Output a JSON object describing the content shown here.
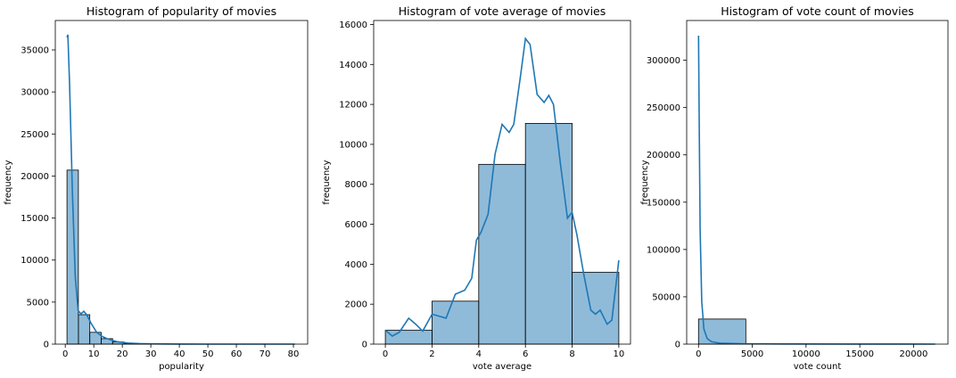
{
  "chart_data": [
    {
      "type": "bar",
      "title": "Histogram of popularity of movies",
      "xlabel": "popularity",
      "ylabel": "frequency",
      "xlim": [
        -3.5,
        85
      ],
      "ylim": [
        0,
        38500
      ],
      "xticks": [
        0,
        10,
        20,
        30,
        40,
        50,
        60,
        70,
        80
      ],
      "yticks": [
        0,
        5000,
        10000,
        15000,
        20000,
        25000,
        30000,
        35000
      ],
      "bins": [
        {
          "x0": 0.6,
          "x1": 4.6,
          "value": 20700
        },
        {
          "x0": 4.6,
          "x1": 8.6,
          "value": 3500
        },
        {
          "x0": 8.6,
          "x1": 12.6,
          "value": 1400
        },
        {
          "x0": 12.6,
          "x1": 16.6,
          "value": 650
        },
        {
          "x0": 16.6,
          "x1": 20.6,
          "value": 250
        },
        {
          "x0": 20.6,
          "x1": 24.6,
          "value": 100
        },
        {
          "x0": 24.6,
          "x1": 28.6,
          "value": 50
        },
        {
          "x0": 28.6,
          "x1": 32.6,
          "value": 25
        },
        {
          "x0": 32.6,
          "x1": 36.6,
          "value": 15
        }
      ],
      "kde": [
        [
          0.6,
          36500
        ],
        [
          0.9,
          36800
        ],
        [
          1.5,
          31000
        ],
        [
          2.5,
          18000
        ],
        [
          3.5,
          8000
        ],
        [
          4.5,
          4000
        ],
        [
          5.5,
          3600
        ],
        [
          6.5,
          3900
        ],
        [
          7.5,
          3500
        ],
        [
          9,
          2500
        ],
        [
          11,
          1400
        ],
        [
          13,
          900
        ],
        [
          15,
          600
        ],
        [
          18,
          300
        ],
        [
          22,
          130
        ],
        [
          26,
          60
        ],
        [
          30,
          30
        ],
        [
          40,
          10
        ],
        [
          50,
          5
        ],
        [
          60,
          3
        ],
        [
          70,
          2
        ],
        [
          80.5,
          1
        ]
      ],
      "grid": false
    },
    {
      "type": "bar",
      "title": "Histogram of vote average of movies",
      "xlabel": "vote average",
      "ylabel": "frequency",
      "xlim": [
        -0.5,
        10.5
      ],
      "ylim": [
        0,
        16200
      ],
      "xticks": [
        0,
        2,
        4,
        6,
        8,
        10
      ],
      "yticks": [
        0,
        2000,
        4000,
        6000,
        8000,
        10000,
        12000,
        14000,
        16000
      ],
      "bins": [
        {
          "x0": 0,
          "x1": 2,
          "value": 700
        },
        {
          "x0": 2,
          "x1": 4,
          "value": 2150
        },
        {
          "x0": 4,
          "x1": 6,
          "value": 9000
        },
        {
          "x0": 6,
          "x1": 8,
          "value": 11050
        },
        {
          "x0": 8,
          "x1": 10,
          "value": 3600
        }
      ],
      "kde": [
        [
          0,
          700
        ],
        [
          0.3,
          400
        ],
        [
          0.6,
          600
        ],
        [
          1.0,
          1300
        ],
        [
          1.3,
          1000
        ],
        [
          1.6,
          650
        ],
        [
          2.0,
          1500
        ],
        [
          2.3,
          1400
        ],
        [
          2.6,
          1300
        ],
        [
          3.0,
          2500
        ],
        [
          3.4,
          2700
        ],
        [
          3.7,
          3300
        ],
        [
          3.9,
          5200
        ],
        [
          4.1,
          5600
        ],
        [
          4.4,
          6500
        ],
        [
          4.7,
          9500
        ],
        [
          5.0,
          11000
        ],
        [
          5.3,
          10600
        ],
        [
          5.5,
          11000
        ],
        [
          5.8,
          13500
        ],
        [
          6.0,
          15300
        ],
        [
          6.2,
          15000
        ],
        [
          6.5,
          12500
        ],
        [
          6.8,
          12100
        ],
        [
          7.0,
          12450
        ],
        [
          7.2,
          12000
        ],
        [
          7.5,
          9000
        ],
        [
          7.8,
          6300
        ],
        [
          8.0,
          6600
        ],
        [
          8.2,
          5500
        ],
        [
          8.5,
          3500
        ],
        [
          8.8,
          1700
        ],
        [
          9.0,
          1500
        ],
        [
          9.2,
          1700
        ],
        [
          9.5,
          1000
        ],
        [
          9.7,
          1200
        ],
        [
          10,
          4200
        ]
      ],
      "grid": false
    },
    {
      "type": "bar",
      "title": "Histogram of vote count of movies",
      "xlabel": "vote count",
      "ylabel": "frequency",
      "xlim": [
        -1100,
        23200
      ],
      "ylim": [
        0,
        342000
      ],
      "xticks": [
        0,
        5000,
        10000,
        15000,
        20000
      ],
      "yticks": [
        0,
        50000,
        100000,
        150000,
        200000,
        250000,
        300000
      ],
      "bins": [
        {
          "x0": 0,
          "x1": 4400,
          "value": 26500
        },
        {
          "x0": 4400,
          "x1": 8800,
          "value": 150
        },
        {
          "x0": 8800,
          "x1": 13200,
          "value": 40
        },
        {
          "x0": 13200,
          "x1": 17600,
          "value": 15
        },
        {
          "x0": 17600,
          "x1": 22000,
          "value": 5
        }
      ],
      "kde": [
        [
          0,
          326000
        ],
        [
          60,
          240000
        ],
        [
          150,
          120000
        ],
        [
          300,
          45000
        ],
        [
          500,
          16000
        ],
        [
          800,
          6000
        ],
        [
          1200,
          2500
        ],
        [
          2000,
          1000
        ],
        [
          4000,
          400
        ],
        [
          8000,
          150
        ],
        [
          14000,
          60
        ],
        [
          22000,
          20
        ]
      ],
      "grid": false
    }
  ]
}
